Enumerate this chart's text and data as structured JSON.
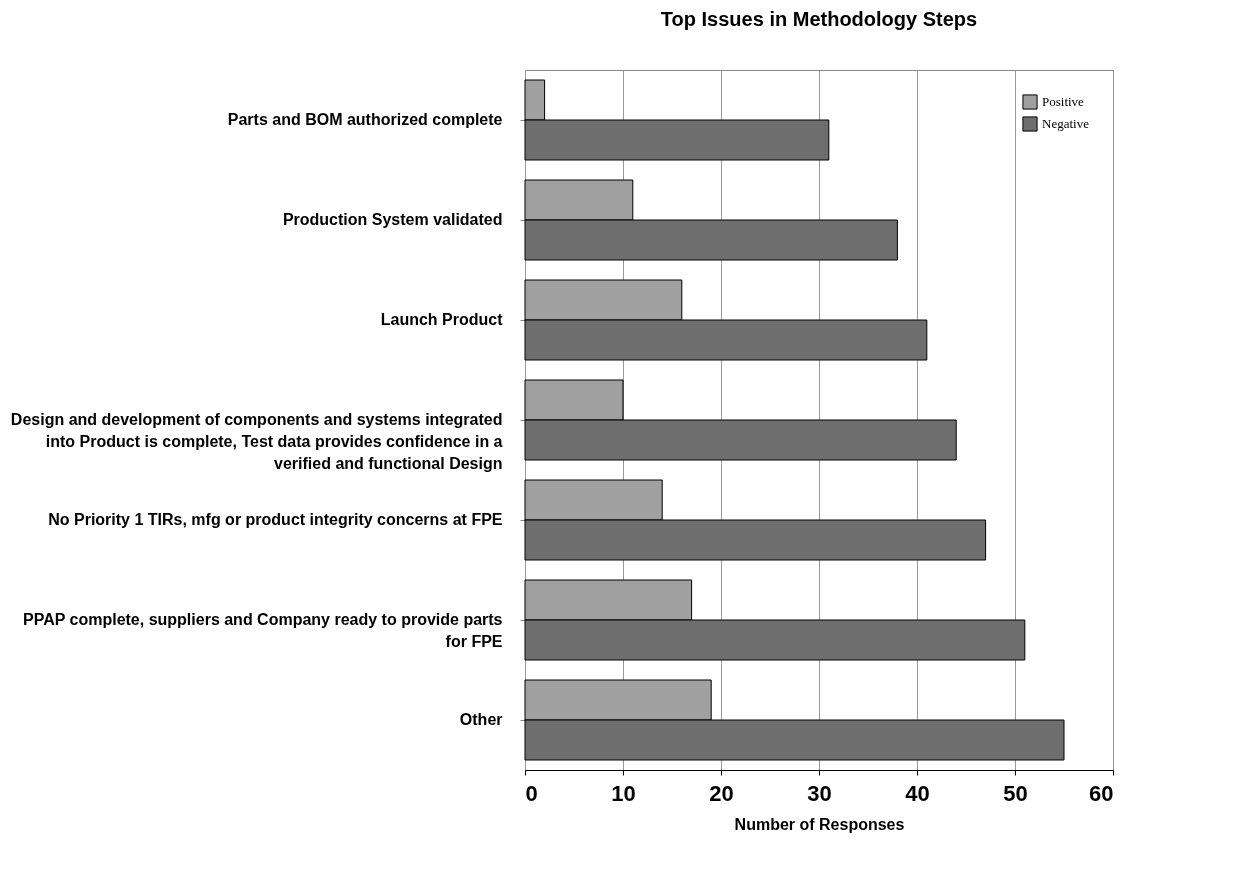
{
  "chart_data": {
    "type": "bar",
    "orientation": "horizontal",
    "title": "Top Issues in Methodology Steps",
    "xlabel": "Number of Responses",
    "categories": [
      "Parts and BOM authorized complete",
      "Production System validated",
      "Launch Product",
      "Design and development of components and systems integrated into Product is complete, Test data provides confidence in a verified and functional Design",
      "No Priority 1 TIRs, mfg or product integrity concerns at FPE",
      "PPAP complete, suppliers and Company ready to provide parts for FPE",
      "Other"
    ],
    "series": [
      {
        "name": "Positive",
        "color": "#a0a0a0",
        "values": [
          2,
          11,
          16,
          10,
          14,
          17,
          19
        ]
      },
      {
        "name": "Negative",
        "color": "#6e6e6e",
        "values": [
          31,
          38,
          41,
          44,
          47,
          51,
          55
        ]
      }
    ],
    "xlim": [
      0,
      60
    ],
    "xticks": [
      0,
      10,
      20,
      30,
      40,
      50,
      60
    ],
    "grid": "x",
    "legend": "top right"
  }
}
